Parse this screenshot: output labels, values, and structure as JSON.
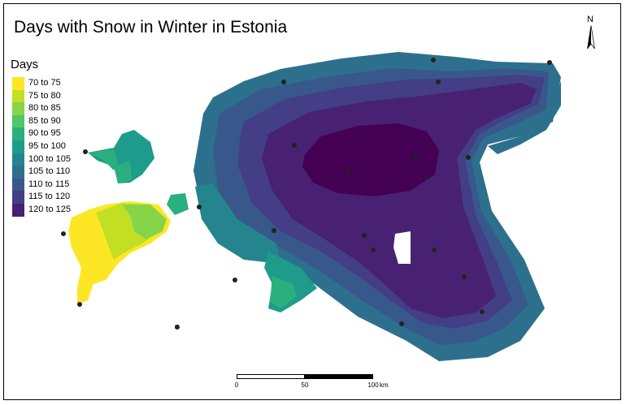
{
  "title": "Days with Snow in Winter in Estonia",
  "legend": {
    "title": "Days",
    "items": [
      {
        "label": "70 to 75",
        "color": "#fde725"
      },
      {
        "label": "75 to 80",
        "color": "#c2df23"
      },
      {
        "label": "80 to 85",
        "color": "#86d549"
      },
      {
        "label": "85 to 90",
        "color": "#52c569"
      },
      {
        "label": "90 to 95",
        "color": "#2ab07f"
      },
      {
        "label": "95 to 100",
        "color": "#1e9b8a"
      },
      {
        "label": "100 to 105",
        "color": "#25858e"
      },
      {
        "label": "105 to 110",
        "color": "#2d708e"
      },
      {
        "label": "110 to 115",
        "color": "#38588c"
      },
      {
        "label": "115 to 120",
        "color": "#433e85"
      },
      {
        "label": "120 to 125",
        "color": "#482173"
      }
    ]
  },
  "north_arrow": {
    "label": "N",
    "icon": "north-arrow-icon"
  },
  "scale_bar": {
    "ticks": [
      "0",
      "50",
      "100"
    ],
    "unit": "km"
  },
  "colors": {
    "innermost": "#440154",
    "station_point": "#222222"
  }
}
